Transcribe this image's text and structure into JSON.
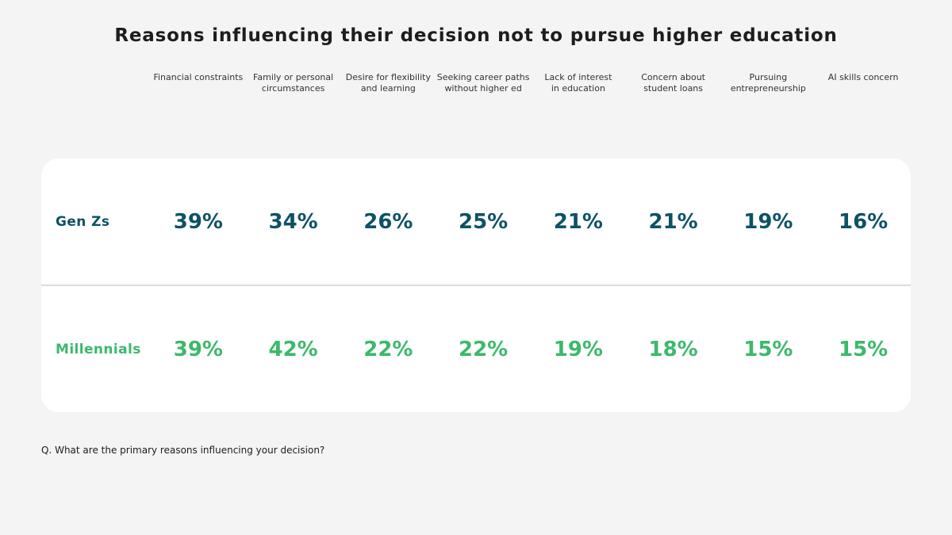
{
  "title": "Reasons influencing their decision not to pursue higher education",
  "footnote": "Q. What are the primary reasons influencing your decision?",
  "colors": {
    "background": "#f4f4f5",
    "card": "#ffffff",
    "divider": "#dcdcdc",
    "genz_accent": "#0d5265",
    "millennials_accent": "#3cb96a",
    "title_text": "#1d1d1f",
    "header_text": "#333333"
  },
  "headers": [
    {
      "l1": "Financial constraints",
      "l2": ""
    },
    {
      "l1": "Family or personal",
      "l2": "circumstances"
    },
    {
      "l1": "Desire for flexibility",
      "l2": "and learning"
    },
    {
      "l1": "Seeking career paths",
      "l2": "without higher ed"
    },
    {
      "l1": "Lack of interest",
      "l2": "in education"
    },
    {
      "l1": "Concern about",
      "l2": "student loans"
    },
    {
      "l1": "Pursuing",
      "l2": "entrepreneurship"
    },
    {
      "l1": "AI skills concern",
      "l2": ""
    }
  ],
  "display": {
    "genz": {
      "label": "Gen Zs",
      "cells": [
        "39%",
        "34%",
        "26%",
        "25%",
        "21%",
        "21%",
        "19%",
        "16%"
      ]
    },
    "millennials": {
      "label": "Millennials",
      "cells": [
        "39%",
        "42%",
        "22%",
        "22%",
        "19%",
        "18%",
        "15%",
        "15%"
      ]
    }
  },
  "chart_data": {
    "type": "table",
    "title": "Reasons influencing their decision not to pursue higher education",
    "unit": "%",
    "categories": [
      "Financial constraints",
      "Family or personal circumstances",
      "Desire for flexibility and learning",
      "Seeking career paths without higher ed",
      "Lack of interest in education",
      "Concern about student loans",
      "Pursuing entrepreneurship",
      "AI skills concern"
    ],
    "series": [
      {
        "name": "Gen Zs",
        "color": "#0d5265",
        "values": [
          39,
          34,
          26,
          25,
          21,
          21,
          19,
          16
        ]
      },
      {
        "name": "Millennials",
        "color": "#3cb96a",
        "values": [
          39,
          42,
          22,
          22,
          19,
          18,
          15,
          15
        ]
      }
    ],
    "annotations": [
      "Q. What are the primary reasons influencing your decision?"
    ],
    "legend_position": "row-labels-left",
    "grid": false
  }
}
